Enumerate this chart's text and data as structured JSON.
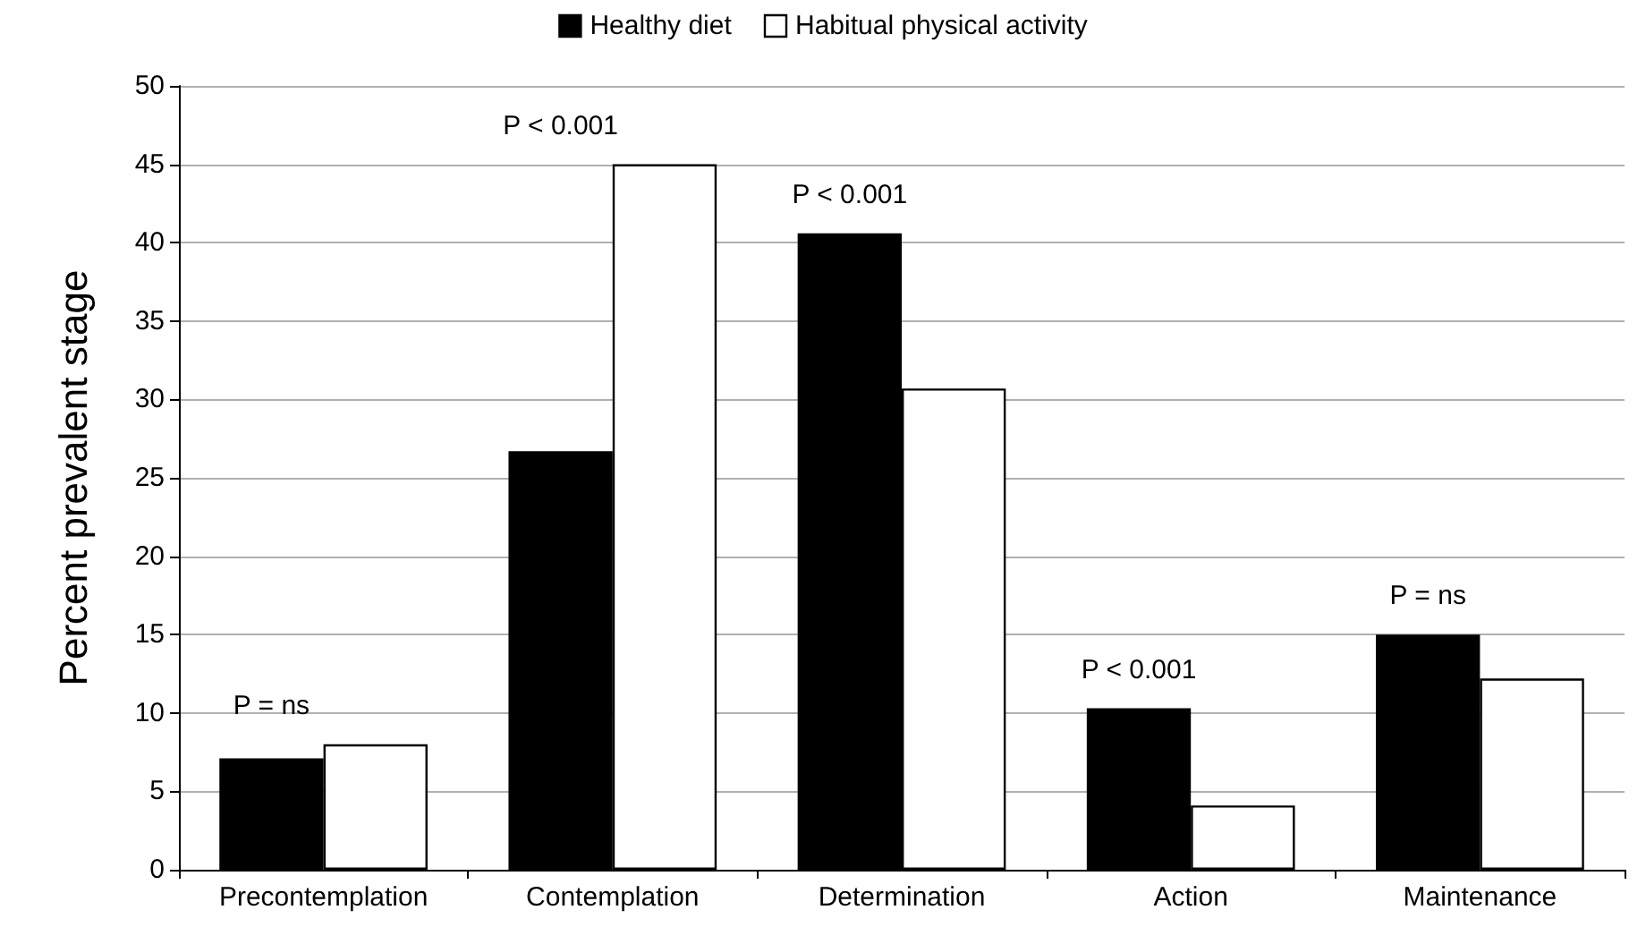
{
  "chart_data": {
    "type": "bar",
    "ylabel": "Percent prevalent stage",
    "categories": [
      "Precontemplation",
      "Contemplation",
      "Determination",
      "Action",
      "Maintenance"
    ],
    "series": [
      {
        "name": "Healthy diet",
        "color": "#000000",
        "values": [
          7.1,
          26.7,
          40.6,
          10.3,
          15
        ]
      },
      {
        "name": "Habitual physical activity",
        "color": "#ffffff",
        "values": [
          8,
          45,
          30.7,
          4.1,
          12.2
        ]
      }
    ],
    "ylim": [
      0,
      50
    ],
    "yticks": [
      0,
      5,
      10,
      15,
      20,
      25,
      30,
      35,
      40,
      45,
      50
    ],
    "grid": "y",
    "legend": "top",
    "annotations": [
      "P = ns",
      "P < 0.001",
      "P < 0.001",
      "P < 0.001",
      "P = ns"
    ]
  }
}
